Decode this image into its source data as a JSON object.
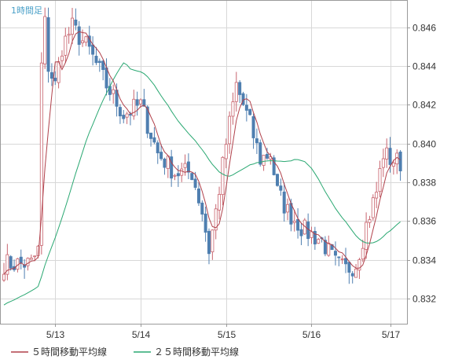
{
  "chart_data": {
    "type": "candlestick",
    "title": "1時間足",
    "x_ticks": [
      "5/13",
      "5/14",
      "5/15",
      "5/16",
      "5/17"
    ],
    "y_ticks": [
      "0.832",
      "0.834",
      "0.836",
      "0.838",
      "0.840",
      "0.842",
      "0.844",
      "0.846"
    ],
    "ylim": [
      0.8307,
      0.8474
    ],
    "grid": true,
    "legend_position": "bottom-left",
    "colors": {
      "up": "#c8646e",
      "down": "#4f7fb0",
      "ma5": "#b0404a",
      "ma25": "#2aa872",
      "grid": "#d8d8d8",
      "axis": "#9a9a9a"
    },
    "series": [
      {
        "name": "５時間移動平均線",
        "color": "#b0404a"
      },
      {
        "name": "２５時間移動平均線",
        "color": "#2aa872"
      }
    ],
    "candle_count": 117,
    "x_tick_index": [
      15,
      40,
      65,
      90,
      113
    ],
    "waypoints": [
      [
        0,
        0.8338
      ],
      [
        8,
        0.8338
      ],
      [
        10,
        0.8345
      ],
      [
        11,
        0.844
      ],
      [
        12,
        0.8462
      ],
      [
        13,
        0.844
      ],
      [
        15,
        0.843
      ],
      [
        17,
        0.845
      ],
      [
        20,
        0.846
      ],
      [
        25,
        0.8448
      ],
      [
        30,
        0.843
      ],
      [
        35,
        0.8415
      ],
      [
        40,
        0.842
      ],
      [
        45,
        0.8395
      ],
      [
        50,
        0.8385
      ],
      [
        55,
        0.8385
      ],
      [
        58,
        0.8365
      ],
      [
        60,
        0.8345
      ],
      [
        62,
        0.8365
      ],
      [
        65,
        0.84
      ],
      [
        68,
        0.843
      ],
      [
        72,
        0.841
      ],
      [
        75,
        0.8392
      ],
      [
        78,
        0.8395
      ],
      [
        80,
        0.8375
      ],
      [
        83,
        0.8365
      ],
      [
        88,
        0.8355
      ],
      [
        93,
        0.835
      ],
      [
        97,
        0.8338
      ],
      [
        100,
        0.8335
      ],
      [
        103,
        0.8338
      ],
      [
        106,
        0.8358
      ],
      [
        109,
        0.8375
      ],
      [
        111,
        0.8395
      ],
      [
        113,
        0.8392
      ],
      [
        116,
        0.839
      ]
    ],
    "ma25_start": 0.8316
  }
}
